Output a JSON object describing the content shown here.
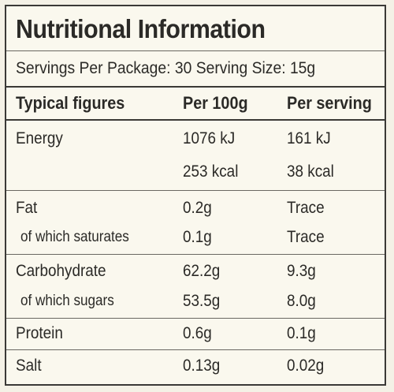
{
  "label": {
    "title": "Nutritional Information",
    "servings": "Servings Per Package: 30   Serving Size: 15g",
    "headers": {
      "col1": "Typical figures",
      "col2": "Per 100g",
      "col3": "Per serving"
    },
    "rows": {
      "energy": {
        "name": "Energy",
        "per100": "1076 kJ",
        "serving": "161 kJ"
      },
      "energy_kcal": {
        "per100": "253 kcal",
        "serving": "38 kcal"
      },
      "fat": {
        "name": "Fat",
        "per100": "0.2g",
        "serving": "Trace"
      },
      "saturates": {
        "name": "of which saturates",
        "per100": "0.1g",
        "serving": "Trace"
      },
      "carbohydrate": {
        "name": "Carbohydrate",
        "per100": "62.2g",
        "serving": "9.3g"
      },
      "sugars": {
        "name": "of which sugars",
        "per100": "53.5g",
        "serving": "8.0g"
      },
      "protein": {
        "name": "Protein",
        "per100": "0.6g",
        "serving": "0.1g"
      },
      "salt": {
        "name": "Salt",
        "per100": "0.13g",
        "serving": "0.02g"
      }
    }
  }
}
